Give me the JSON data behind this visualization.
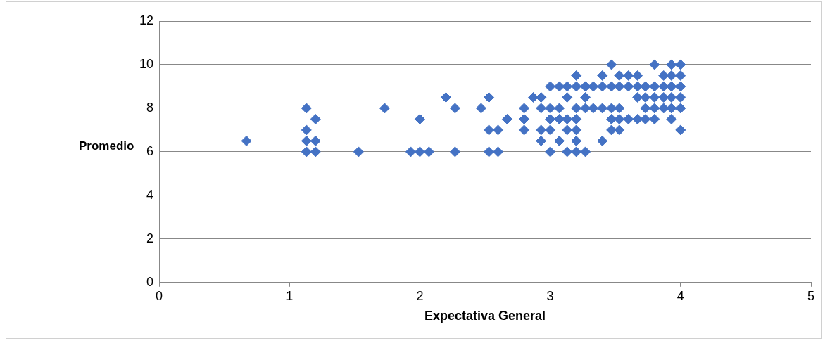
{
  "chart_data": {
    "type": "scatter",
    "xlabel": "Expectativa General",
    "ylabel": "Promedio",
    "xlim": [
      0,
      5
    ],
    "xticks": [
      0,
      1,
      2,
      3,
      4,
      5
    ],
    "ylim": [
      0,
      12
    ],
    "yticks": [
      0,
      2,
      4,
      6,
      8,
      10,
      12
    ],
    "grid": "y",
    "legend": false,
    "marker": "diamond",
    "series": [
      {
        "color": "#4472c4",
        "x": [
          0.67,
          1.13,
          1.13,
          1.13,
          1.13,
          1.2,
          1.2,
          1.2,
          1.53,
          1.73,
          1.93,
          2,
          2,
          2.07,
          2.2,
          2.27,
          2.27,
          2.47,
          2.53,
          2.53,
          2.53,
          2.6,
          2.6,
          2.67,
          2.8,
          2.8,
          2.8,
          2.87,
          2.93,
          2.93,
          2.93,
          2.93,
          2.93,
          3,
          3,
          3,
          3,
          3,
          3.07,
          3.07,
          3.07,
          3.07,
          3.13,
          3.13,
          3.13,
          3.13,
          3.13,
          3.2,
          3.2,
          3.2,
          3.2,
          3.2,
          3.2,
          3.2,
          3.27,
          3.27,
          3.27,
          3.27,
          3.27,
          3.33,
          3.33,
          3.4,
          3.4,
          3.4,
          3.4,
          3.47,
          3.47,
          3.47,
          3.47,
          3.47,
          3.53,
          3.53,
          3.53,
          3.53,
          3.53,
          3.6,
          3.6,
          3.6,
          3.67,
          3.67,
          3.67,
          3.67,
          3.73,
          3.73,
          3.73,
          3.73,
          3.8,
          3.8,
          3.8,
          3.8,
          3.8,
          3.87,
          3.87,
          3.87,
          3.87,
          3.93,
          3.93,
          3.93,
          3.93,
          3.93,
          3.93,
          4,
          4,
          4,
          4,
          4,
          4
        ],
        "values": [
          6.5,
          8,
          7,
          6.5,
          6,
          7.5,
          6.5,
          6,
          6,
          8,
          6,
          7.5,
          6,
          6,
          8.5,
          8,
          6,
          8,
          8.5,
          7,
          6,
          7,
          6,
          7.5,
          8,
          7.5,
          7,
          8.5,
          8.5,
          8,
          7,
          6.5,
          8.5,
          9,
          8,
          7.5,
          7,
          6,
          9,
          8,
          7.5,
          6.5,
          9,
          8.5,
          7.5,
          7,
          6,
          9.5,
          9,
          7.5,
          7,
          6.5,
          6,
          8,
          9,
          8.5,
          8,
          6,
          9,
          9,
          8,
          9.5,
          9,
          8,
          6.5,
          10,
          9,
          8,
          7.5,
          7,
          9.5,
          9,
          8,
          7.5,
          7,
          9.5,
          9,
          7.5,
          9.5,
          9,
          8.5,
          7.5,
          9,
          8.5,
          8,
          7.5,
          10,
          9,
          8.5,
          8,
          7.5,
          9.5,
          9,
          8.5,
          8,
          10,
          9.5,
          9,
          8.5,
          8,
          7.5,
          10,
          9.5,
          9,
          8.5,
          8,
          7
        ]
      }
    ]
  }
}
